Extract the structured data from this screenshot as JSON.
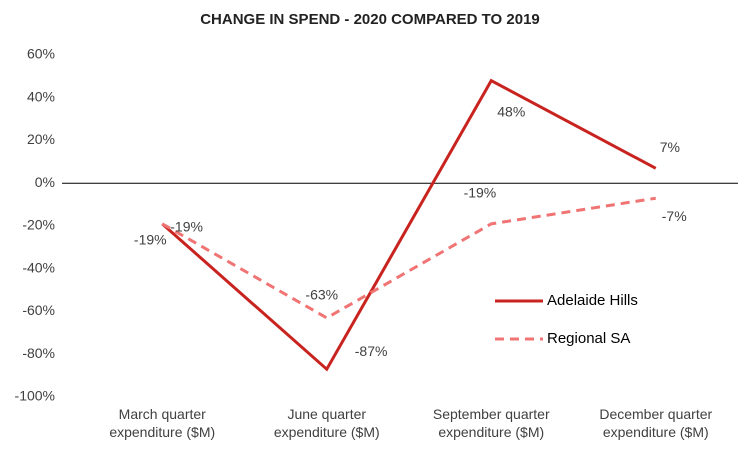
{
  "chart_data": {
    "type": "line",
    "title": "CHANGE IN SPEND - 2020 COMPARED TO 2019",
    "categories": [
      "March quarter expenditure ($M)",
      "June quarter expenditure ($M)",
      "September quarter expenditure ($M)",
      "December quarter expenditure ($M)"
    ],
    "series": [
      {
        "name": "Adelaide Hills",
        "color": "#c8231f",
        "dash": false,
        "values": [
          -19,
          -87,
          48,
          7
        ],
        "value_labels": [
          "-19%",
          "-87%",
          "48%",
          "7%"
        ]
      },
      {
        "name": "Regional SA",
        "color": "#f07474",
        "dash": true,
        "values": [
          -19,
          -63,
          -19,
          -7
        ],
        "value_labels": [
          "-19%",
          "-63%",
          "-19%",
          "-7%"
        ]
      }
    ],
    "ylim": [
      -100,
      60
    ],
    "yticks": [
      {
        "value": -100,
        "label": "-100%"
      },
      {
        "value": -80,
        "label": "-80%"
      },
      {
        "value": -60,
        "label": "-60%"
      },
      {
        "value": -40,
        "label": "-40%"
      },
      {
        "value": -20,
        "label": "-20%"
      },
      {
        "value": 0,
        "label": "0%"
      },
      {
        "value": 20,
        "label": "20%"
      },
      {
        "value": 40,
        "label": "40%"
      },
      {
        "value": 60,
        "label": "60%"
      }
    ]
  }
}
